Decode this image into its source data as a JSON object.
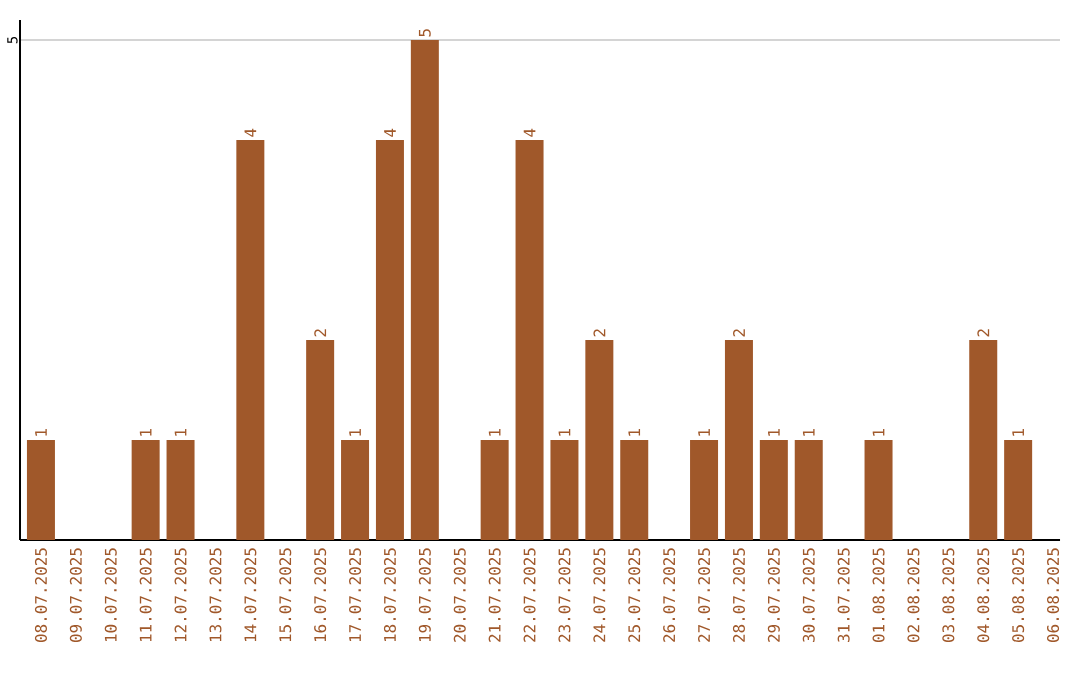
{
  "chart_data": {
    "type": "bar",
    "categories": [
      "08.07.2025",
      "09.07.2025",
      "10.07.2025",
      "11.07.2025",
      "12.07.2025",
      "13.07.2025",
      "14.07.2025",
      "15.07.2025",
      "16.07.2025",
      "17.07.2025",
      "18.07.2025",
      "19.07.2025",
      "20.07.2025",
      "21.07.2025",
      "22.07.2025",
      "23.07.2025",
      "24.07.2025",
      "25.07.2025",
      "26.07.2025",
      "27.07.2025",
      "28.07.2025",
      "29.07.2025",
      "30.07.2025",
      "31.07.2025",
      "01.08.2025",
      "02.08.2025",
      "03.08.2025",
      "04.08.2025",
      "05.08.2025",
      "06.08.2025"
    ],
    "values": [
      1,
      0,
      0,
      1,
      1,
      0,
      4,
      0,
      2,
      1,
      4,
      5,
      0,
      1,
      4,
      1,
      2,
      1,
      0,
      1,
      2,
      1,
      1,
      0,
      1,
      0,
      0,
      2,
      1,
      0
    ],
    "value_labels": [
      "1",
      null,
      null,
      "1",
      "1",
      null,
      "4",
      null,
      "2",
      "1",
      "4",
      "5",
      null,
      "1",
      "4",
      "1",
      "2",
      "1",
      null,
      "1",
      "2",
      "1",
      "1",
      null,
      "1",
      null,
      null,
      "2",
      "1",
      null
    ],
    "color": "#a0582a",
    "ylim": [
      0,
      5.2
    ],
    "yticks": [
      5
    ],
    "grid": "y"
  }
}
